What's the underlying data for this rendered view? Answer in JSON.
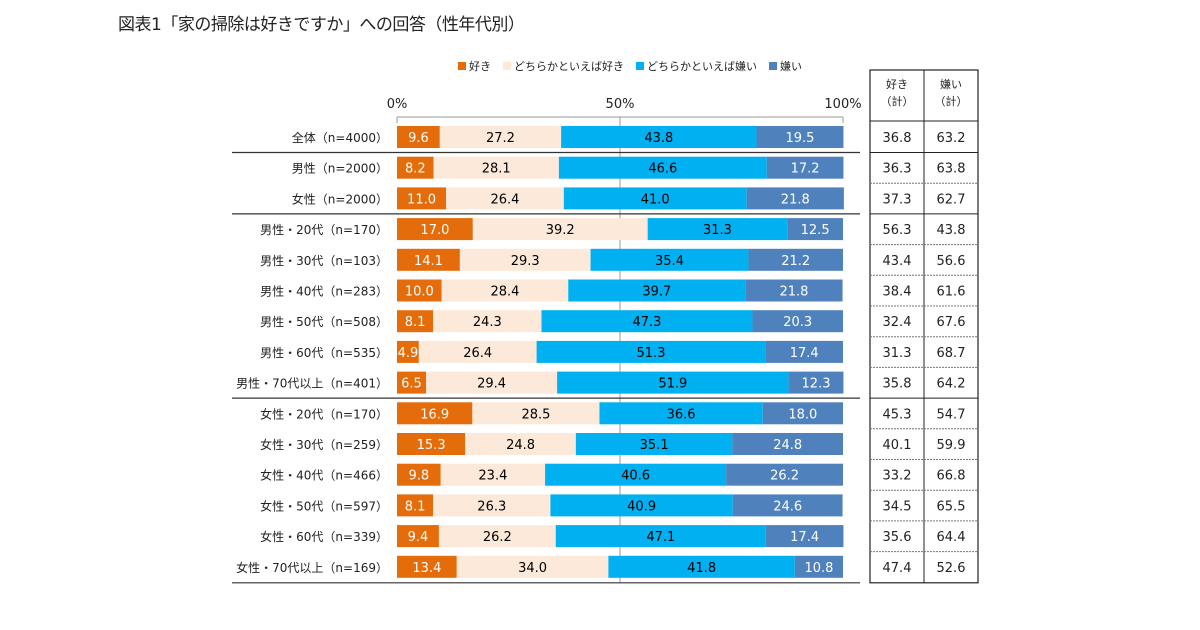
{
  "chart_data": {
    "type": "bar",
    "orientation": "horizontal-stacked-100",
    "title": "図表1「家の掃除は好きですか」への回答（性年代別）",
    "xlim": [
      0,
      100
    ],
    "x_ticks": [
      "0%",
      "50%",
      "100%"
    ],
    "legend_position": "top",
    "categories": [
      "全体（n=4000）",
      "男性（n=2000）",
      "女性（n=2000）",
      "男性・20代（n=170）",
      "男性・30代（n=103）",
      "男性・40代（n=283）",
      "男性・50代（n=508）",
      "男性・60代（n=535）",
      "男性・70代以上（n=401）",
      "女性・20代（n=170）",
      "女性・30代（n=259）",
      "女性・40代（n=466）",
      "女性・50代（n=597）",
      "女性・60代（n=339）",
      "女性・70代以上（n=169）"
    ],
    "series": [
      {
        "name": "好き",
        "color": "#E46C0A",
        "label_color": "#ffffff",
        "values": [
          9.6,
          8.2,
          11.0,
          17.0,
          14.1,
          10.0,
          8.1,
          4.9,
          6.5,
          16.9,
          15.3,
          9.8,
          8.1,
          9.4,
          13.4
        ]
      },
      {
        "name": "どちらかといえば好き",
        "color": "#FDE9D9",
        "label_color": "#000000",
        "values": [
          27.2,
          28.1,
          26.4,
          39.2,
          29.3,
          28.4,
          24.3,
          26.4,
          29.4,
          28.5,
          24.8,
          23.4,
          26.3,
          26.2,
          34.0
        ]
      },
      {
        "name": "どちらかといえば嫌い",
        "color": "#00B0F0",
        "label_color": "#000000",
        "values": [
          43.8,
          46.6,
          41.0,
          31.3,
          35.4,
          39.7,
          47.3,
          51.3,
          51.9,
          36.6,
          35.1,
          40.6,
          40.9,
          47.1,
          41.8
        ]
      },
      {
        "name": "嫌い",
        "color": "#4F81BD",
        "label_color": "#ffffff",
        "values": [
          19.5,
          17.2,
          21.8,
          12.5,
          21.2,
          21.8,
          20.3,
          17.4,
          12.3,
          18.0,
          24.8,
          26.2,
          24.6,
          17.4,
          10.8
        ]
      }
    ],
    "table": {
      "headers": [
        [
          "好き",
          "（計）"
        ],
        [
          "嫌い",
          "（計）"
        ]
      ],
      "rows": [
        [
          "36.8",
          "63.2"
        ],
        [
          "36.3",
          "63.8"
        ],
        [
          "37.3",
          "62.7"
        ],
        [
          "56.3",
          "43.8"
        ],
        [
          "43.4",
          "56.6"
        ],
        [
          "38.4",
          "61.6"
        ],
        [
          "32.4",
          "67.6"
        ],
        [
          "31.3",
          "68.7"
        ],
        [
          "35.8",
          "64.2"
        ],
        [
          "45.3",
          "54.7"
        ],
        [
          "40.1",
          "59.9"
        ],
        [
          "33.2",
          "66.8"
        ],
        [
          "34.5",
          "65.5"
        ],
        [
          "35.6",
          "64.4"
        ],
        [
          "47.4",
          "52.6"
        ]
      ]
    },
    "group_separators_after": [
      0,
      2,
      8
    ]
  }
}
